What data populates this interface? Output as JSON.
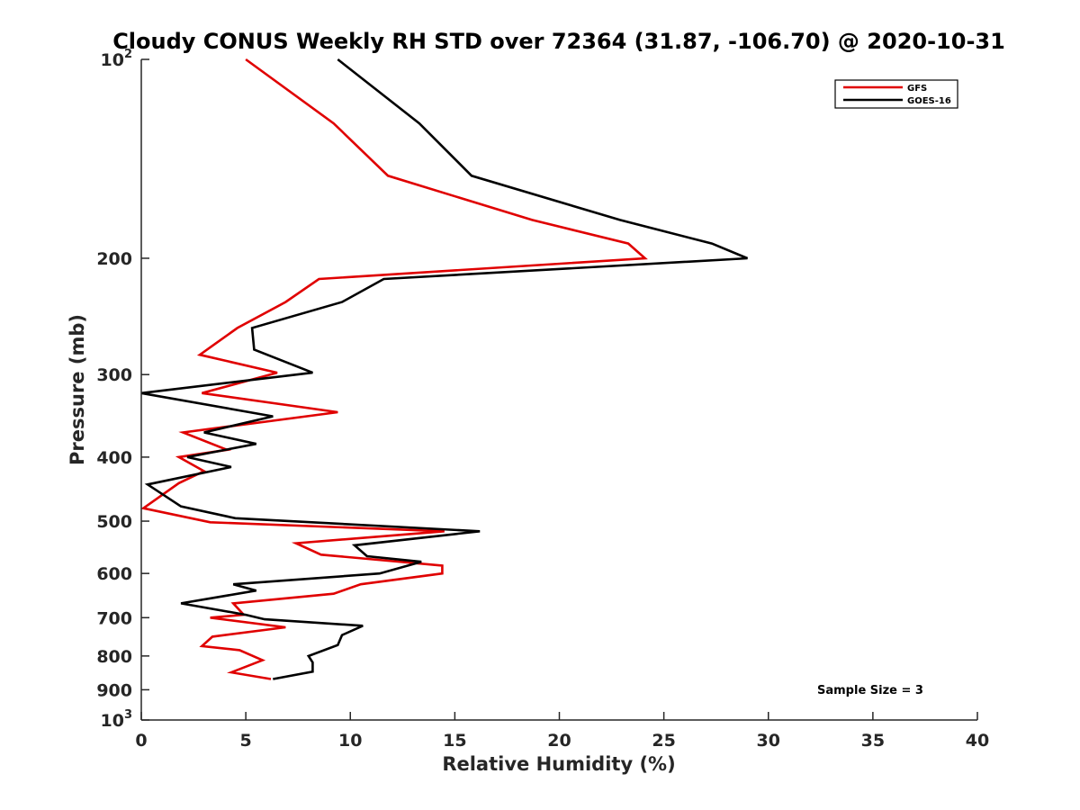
{
  "chart_data": {
    "type": "line",
    "title": "Cloudy CONUS Weekly RH STD over 72364 (31.87, -106.70) @ 2020-10-31",
    "xlabel": "Relative Humidity (%)",
    "ylabel": "Pressure (mb)",
    "xlim": [
      0,
      40
    ],
    "ylim": [
      100,
      1000
    ],
    "y_scale": "log",
    "y_reversed": true,
    "grid": false,
    "legend_position": "top-right",
    "x_ticks": [
      "0",
      "5",
      "10",
      "15",
      "20",
      "25",
      "30",
      "35",
      "40"
    ],
    "y_ticks": [
      {
        "value": 100,
        "base": "10",
        "exp": "2"
      },
      {
        "value": 200,
        "label": "200"
      },
      {
        "value": 300,
        "label": "300"
      },
      {
        "value": 400,
        "label": "400"
      },
      {
        "value": 500,
        "label": "500"
      },
      {
        "value": 600,
        "label": "600"
      },
      {
        "value": 700,
        "label": "700"
      },
      {
        "value": 800,
        "label": "800"
      },
      {
        "value": 900,
        "label": "900"
      },
      {
        "value": 1000,
        "base": "10",
        "exp": "3"
      }
    ],
    "series": [
      {
        "name": "GFS",
        "color": "#e00000",
        "points": [
          {
            "x": 5.0,
            "y": 100
          },
          {
            "x": 9.2,
            "y": 125
          },
          {
            "x": 11.8,
            "y": 150
          },
          {
            "x": 18.7,
            "y": 175
          },
          {
            "x": 23.3,
            "y": 190
          },
          {
            "x": 24.1,
            "y": 200
          },
          {
            "x": 8.5,
            "y": 215
          },
          {
            "x": 6.9,
            "y": 233
          },
          {
            "x": 4.6,
            "y": 255
          },
          {
            "x": 2.8,
            "y": 280
          },
          {
            "x": 6.5,
            "y": 298
          },
          {
            "x": 2.9,
            "y": 320
          },
          {
            "x": 9.4,
            "y": 342
          },
          {
            "x": 2.0,
            "y": 367
          },
          {
            "x": 4.1,
            "y": 390
          },
          {
            "x": 1.8,
            "y": 400
          },
          {
            "x": 3.0,
            "y": 420
          },
          {
            "x": 1.8,
            "y": 438
          },
          {
            "x": 0.1,
            "y": 478
          },
          {
            "x": 3.3,
            "y": 502
          },
          {
            "x": 14.5,
            "y": 518
          },
          {
            "x": 7.4,
            "y": 540
          },
          {
            "x": 8.6,
            "y": 562
          },
          {
            "x": 14.4,
            "y": 584
          },
          {
            "x": 14.4,
            "y": 600
          },
          {
            "x": 10.5,
            "y": 623
          },
          {
            "x": 9.2,
            "y": 644
          },
          {
            "x": 4.4,
            "y": 666
          },
          {
            "x": 4.9,
            "y": 693
          },
          {
            "x": 3.3,
            "y": 700
          },
          {
            "x": 6.9,
            "y": 724
          },
          {
            "x": 3.4,
            "y": 748
          },
          {
            "x": 2.9,
            "y": 773
          },
          {
            "x": 4.7,
            "y": 784
          },
          {
            "x": 5.8,
            "y": 812
          },
          {
            "x": 4.3,
            "y": 847
          },
          {
            "x": 6.2,
            "y": 867
          }
        ]
      },
      {
        "name": "GOES-16",
        "color": "#000000",
        "points": [
          {
            "x": 9.4,
            "y": 100
          },
          {
            "x": 13.3,
            "y": 125
          },
          {
            "x": 15.8,
            "y": 150
          },
          {
            "x": 22.9,
            "y": 175
          },
          {
            "x": 27.3,
            "y": 190
          },
          {
            "x": 29.0,
            "y": 200
          },
          {
            "x": 11.6,
            "y": 215
          },
          {
            "x": 9.6,
            "y": 233
          },
          {
            "x": 5.3,
            "y": 255
          },
          {
            "x": 5.4,
            "y": 275
          },
          {
            "x": 8.2,
            "y": 298
          },
          {
            "x": 0.0,
            "y": 320
          },
          {
            "x": 6.3,
            "y": 347
          },
          {
            "x": 3.0,
            "y": 367
          },
          {
            "x": 5.5,
            "y": 382
          },
          {
            "x": 2.2,
            "y": 400
          },
          {
            "x": 4.3,
            "y": 414
          },
          {
            "x": 0.3,
            "y": 440
          },
          {
            "x": 1.9,
            "y": 475
          },
          {
            "x": 4.5,
            "y": 495
          },
          {
            "x": 16.2,
            "y": 518
          },
          {
            "x": 10.2,
            "y": 544
          },
          {
            "x": 10.8,
            "y": 565
          },
          {
            "x": 13.4,
            "y": 576
          },
          {
            "x": 11.4,
            "y": 600
          },
          {
            "x": 4.4,
            "y": 623
          },
          {
            "x": 5.5,
            "y": 637
          },
          {
            "x": 1.9,
            "y": 666
          },
          {
            "x": 5.0,
            "y": 693
          },
          {
            "x": 5.9,
            "y": 704
          },
          {
            "x": 10.6,
            "y": 720
          },
          {
            "x": 9.6,
            "y": 744
          },
          {
            "x": 9.4,
            "y": 770
          },
          {
            "x": 8.0,
            "y": 800
          },
          {
            "x": 8.2,
            "y": 818
          },
          {
            "x": 8.2,
            "y": 845
          },
          {
            "x": 6.3,
            "y": 867
          }
        ]
      }
    ],
    "annotation": "Sample Size = 3"
  }
}
